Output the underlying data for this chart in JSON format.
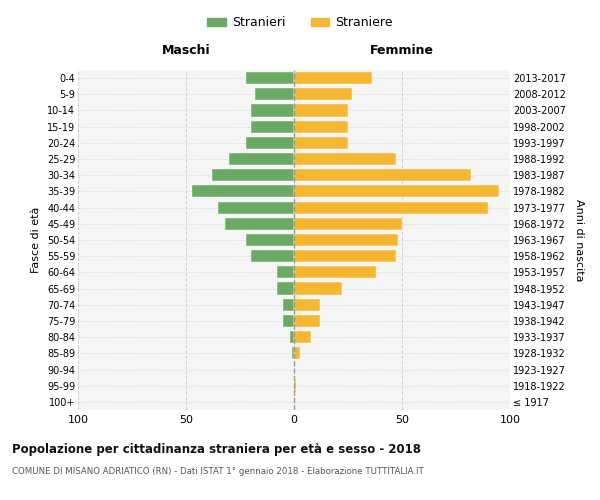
{
  "age_groups": [
    "100+",
    "95-99",
    "90-94",
    "85-89",
    "80-84",
    "75-79",
    "70-74",
    "65-69",
    "60-64",
    "55-59",
    "50-54",
    "45-49",
    "40-44",
    "35-39",
    "30-34",
    "25-29",
    "20-24",
    "15-19",
    "10-14",
    "5-9",
    "0-4"
  ],
  "birth_years": [
    "≤ 1917",
    "1918-1922",
    "1923-1927",
    "1928-1932",
    "1933-1937",
    "1938-1942",
    "1943-1947",
    "1948-1952",
    "1953-1957",
    "1958-1962",
    "1963-1967",
    "1968-1972",
    "1973-1977",
    "1978-1982",
    "1983-1987",
    "1988-1992",
    "1993-1997",
    "1998-2002",
    "2003-2007",
    "2008-2012",
    "2013-2017"
  ],
  "maschi": [
    0,
    0,
    0,
    1,
    2,
    5,
    5,
    8,
    8,
    20,
    22,
    32,
    35,
    47,
    38,
    30,
    22,
    20,
    20,
    18,
    22
  ],
  "femmine": [
    0,
    1,
    0,
    3,
    8,
    12,
    12,
    22,
    38,
    47,
    48,
    50,
    90,
    95,
    82,
    47,
    25,
    25,
    25,
    27,
    36
  ],
  "male_color": "#6aaa64",
  "female_color": "#f5b731",
  "background_color": "#f5f5f5",
  "grid_color": "#cccccc",
  "title": "Popolazione per cittadinanza straniera per età e sesso - 2018",
  "subtitle": "COMUNE DI MISANO ADRIATICO (RN) - Dati ISTAT 1° gennaio 2018 - Elaborazione TUTTITALIA.IT",
  "xlabel_left": "Maschi",
  "xlabel_right": "Femmine",
  "ylabel_left": "Fasce di età",
  "ylabel_right": "Anni di nascita",
  "legend_male": "Stranieri",
  "legend_female": "Straniere",
  "xlim": 100,
  "bar_height": 0.75
}
